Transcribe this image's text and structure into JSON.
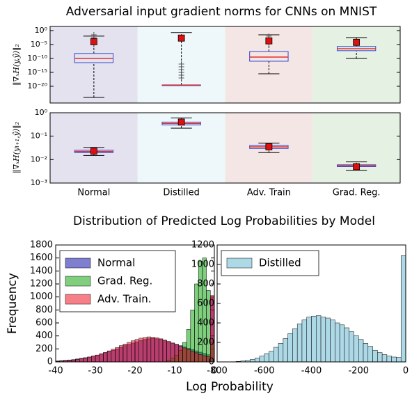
{
  "chart_data": [
    {
      "type": "box",
      "title": "Adversarial input gradient norms for CNNs on MNIST",
      "ylabel": "‖∇ₓH(y,ŷ)‖₂",
      "log_y": true,
      "ylim": [
        1e-26,
        30
      ],
      "yticks": [
        {
          "value": 1,
          "label": "10⁰"
        },
        {
          "value": 1e-05,
          "label": "10⁻⁵"
        },
        {
          "value": 1e-10,
          "label": "10⁻¹⁰"
        },
        {
          "value": 1e-15,
          "label": "10⁻¹⁵"
        },
        {
          "value": 1e-20,
          "label": "10⁻²⁰"
        }
      ],
      "band_colors": [
        "#e4e2ef",
        "#eef8fb",
        "#f4e6e5",
        "#e5f1e3"
      ],
      "box_color": "#3344cc",
      "median_color": "#e03030",
      "mean_color": "#dd1111",
      "boxes": [
        {
          "whislo": 1e-24,
          "q1": 3e-12,
          "med": 1e-10,
          "q3": 6e-09,
          "whishi": 0.01,
          "mean": 0.0001,
          "fliers": [
            0.03,
            0.003,
            0.0003,
            1e-05
          ]
        },
        {
          "whislo": 3e-20,
          "q1": 3e-20,
          "med": 3e-20,
          "q3": 3e-20,
          "whishi": 0.2,
          "mean": 0.002,
          "fliers": [
            1e-12,
            1e-13,
            1e-14,
            1e-15,
            1e-16,
            1e-17
          ]
        },
        {
          "whislo": 3e-16,
          "q1": 1e-11,
          "med": 3e-10,
          "q3": 3e-08,
          "whishi": 0.03,
          "mean": 0.0002,
          "fliers": [
            0.01,
            0.001,
            0.0001,
            3e-05
          ]
        },
        {
          "whislo": 1e-10,
          "q1": 6e-08,
          "med": 3e-07,
          "q3": 2e-06,
          "whishi": 0.003,
          "mean": 6e-05,
          "fliers": []
        }
      ]
    },
    {
      "type": "box",
      "ylabel": "‖∇ₓH(yₗ₊₁,ŷ)‖₂",
      "categories": [
        "Normal",
        "Distilled",
        "Adv. Train",
        "Grad. Reg."
      ],
      "log_y": true,
      "ylim": [
        0.001,
        1
      ],
      "yticks": [
        {
          "value": 1,
          "label": "10⁰"
        },
        {
          "value": 0.1,
          "label": "10⁻¹"
        },
        {
          "value": 0.01,
          "label": "10⁻²"
        },
        {
          "value": 0.001,
          "label": "10⁻³"
        }
      ],
      "band_colors": [
        "#e4e2ef",
        "#eef8fb",
        "#f4e6e5",
        "#e5f1e3"
      ],
      "box_color": "#3344cc",
      "median_color": "#e03030",
      "mean_color": "#dd1111",
      "boxes": [
        {
          "whislo": 0.015,
          "q1": 0.02,
          "med": 0.022,
          "q3": 0.025,
          "whishi": 0.033,
          "mean": 0.023,
          "fliers": []
        },
        {
          "whislo": 0.22,
          "q1": 0.3,
          "med": 0.35,
          "q3": 0.4,
          "whishi": 0.6,
          "mean": 0.4,
          "fliers": []
        },
        {
          "whislo": 0.02,
          "q1": 0.03,
          "med": 0.035,
          "q3": 0.04,
          "whishi": 0.05,
          "mean": 0.035,
          "fliers": []
        },
        {
          "whislo": 0.0035,
          "q1": 0.005,
          "med": 0.0055,
          "q3": 0.006,
          "whishi": 0.008,
          "mean": 0.005,
          "fliers": []
        }
      ]
    },
    {
      "type": "histogram",
      "title": "Distribution of Predicted Log Probabilities by Model",
      "xlabel": "Log Probability",
      "ylabel": "Frequency",
      "xlim": [
        -40,
        0
      ],
      "xticks": [
        -40,
        -30,
        -20,
        -10,
        0
      ],
      "ylim": [
        0,
        1800
      ],
      "yticks": [
        0,
        200,
        400,
        600,
        800,
        1000,
        1200,
        1400,
        1600,
        1800
      ],
      "legend": "upper left",
      "opacity": 0.5,
      "bins": [
        -40,
        -39,
        -38,
        -37,
        -36,
        -35,
        -34,
        -33,
        -32,
        -31,
        -30,
        -29,
        -28,
        -27,
        -26,
        -25,
        -24,
        -23,
        -22,
        -21,
        -20,
        -19,
        -18,
        -17,
        -16,
        -15,
        -14,
        -13,
        -12,
        -11,
        -10,
        -9,
        -8,
        -7,
        -6,
        -5,
        -4,
        -3,
        -2,
        -1,
        0
      ],
      "series": [
        {
          "name": "Normal",
          "color": "#0000a0",
          "values": [
            15,
            20,
            25,
            30,
            35,
            45,
            55,
            65,
            75,
            90,
            105,
            120,
            140,
            160,
            180,
            200,
            225,
            250,
            270,
            290,
            310,
            330,
            345,
            355,
            360,
            355,
            345,
            330,
            310,
            290,
            270,
            250,
            230,
            210,
            190,
            170,
            150,
            130,
            110,
            1000
          ]
        },
        {
          "name": "Grad. Reg.",
          "color": "#00a000",
          "values": [
            0,
            0,
            0,
            0,
            0,
            0,
            0,
            0,
            0,
            0,
            0,
            0,
            0,
            0,
            0,
            0,
            0,
            0,
            0,
            0,
            0,
            0,
            0,
            0,
            0,
            0,
            0,
            0,
            30,
            60,
            100,
            180,
            300,
            500,
            800,
            1200,
            1550,
            1600,
            1100,
            300
          ]
        },
        {
          "name": "Adv. Train.",
          "color": "#f00010",
          "values": [
            10,
            15,
            20,
            25,
            30,
            40,
            50,
            60,
            75,
            90,
            105,
            125,
            145,
            170,
            195,
            220,
            250,
            275,
            300,
            325,
            345,
            365,
            375,
            385,
            380,
            370,
            355,
            335,
            315,
            290,
            265,
            240,
            215,
            190,
            165,
            140,
            115,
            95,
            80,
            1020
          ]
        }
      ]
    },
    {
      "type": "histogram",
      "xlim": [
        -800,
        0
      ],
      "xticks": [
        -800,
        -600,
        -400,
        -200,
        0
      ],
      "ylim": [
        0,
        1200
      ],
      "yticks": [
        0,
        200,
        400,
        600,
        800,
        1000,
        1200
      ],
      "legend": "upper left",
      "opacity": 1,
      "bins": [
        -800,
        -780,
        -760,
        -740,
        -720,
        -700,
        -680,
        -660,
        -640,
        -620,
        -600,
        -580,
        -560,
        -540,
        -520,
        -500,
        -480,
        -460,
        -440,
        -420,
        -400,
        -380,
        -360,
        -340,
        -320,
        -300,
        -280,
        -260,
        -240,
        -220,
        -200,
        -180,
        -160,
        -140,
        -120,
        -100,
        -80,
        -60,
        -40,
        -20,
        0
      ],
      "series": [
        {
          "name": "Distilled",
          "color": "#add8e6",
          "values": [
            0,
            0,
            0,
            2,
            5,
            10,
            15,
            25,
            40,
            60,
            85,
            110,
            150,
            190,
            240,
            290,
            340,
            390,
            430,
            460,
            470,
            475,
            460,
            450,
            430,
            400,
            380,
            350,
            310,
            270,
            230,
            190,
            160,
            120,
            95,
            75,
            60,
            50,
            45,
            1090
          ]
        }
      ]
    }
  ]
}
